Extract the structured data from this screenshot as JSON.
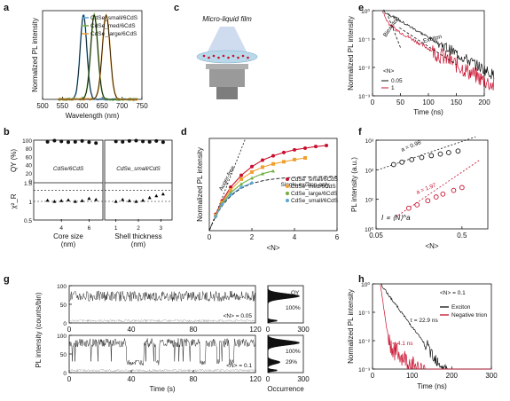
{
  "colors": {
    "red": "#c8102e",
    "blue": "#5aa7d6",
    "green": "#6fae3c",
    "orange": "#f0a030",
    "navy": "#1f3c88",
    "black": "#111111",
    "gray": "#9a9a9a"
  },
  "chart_data": [
    {
      "panel": "a",
      "type": "line",
      "xlabel": "Wavelength (nm)",
      "ylabel": "Normalized PL intensity",
      "xlim": [
        500,
        750
      ],
      "xticks": [
        "500",
        "550",
        "600",
        "650",
        "700",
        "750"
      ],
      "series": [
        {
          "name": "CdSe_small/6CdS",
          "peak": 603,
          "fwhm": 26
        },
        {
          "name": "CdSe_med/6CdS",
          "peak": 630,
          "fwhm": 28
        },
        {
          "name": "CdSe_large/6CdS",
          "peak": 660,
          "fwhm": 30
        }
      ]
    },
    {
      "panel": "b",
      "type": "scatter",
      "ylabel_top": "QY (%)",
      "ylabel_bottom": "χ²_R",
      "ylim_top": [
        0,
        100
      ],
      "yticks_top": [
        "0",
        "20",
        "40",
        "60",
        "80",
        "100"
      ],
      "ylim_bottom": [
        0.5,
        1.5
      ],
      "yticks_bottom": [
        "0.5",
        "1",
        "1.5"
      ],
      "left": {
        "label": "CdSe/6CdS",
        "xlabel": "Core size (nm)",
        "xticks": [
          "4",
          "6"
        ],
        "x": [
          3,
          3.5,
          4,
          4.5,
          5,
          5.5,
          6,
          6.5
        ],
        "qy": [
          96,
          99,
          97,
          95,
          96,
          98,
          95,
          93
        ],
        "chi2": [
          1.03,
          1.0,
          1.02,
          1.04,
          1.0,
          1.02,
          1.08,
          1.05
        ]
      },
      "right": {
        "label": "CdSe_small/CdS",
        "xlabel": "Shell thickness (nm)",
        "xticks": [
          "1",
          "2",
          "3"
        ],
        "x": [
          1,
          1.3,
          1.6,
          1.9,
          2.2,
          2.5,
          2.8,
          3.1
        ],
        "qy": [
          97,
          96,
          98,
          99,
          97,
          96,
          98,
          95
        ],
        "chi2": [
          1.0,
          1.05,
          1.02,
          1.0,
          1.03,
          1.1,
          1.15,
          1.2
        ]
      }
    },
    {
      "panel": "c",
      "type": "diagram",
      "title": "Micro-liquid film"
    },
    {
      "panel": "d",
      "type": "line",
      "xlabel": "<N>",
      "ylabel": "Normalized PL intensity",
      "xlim": [
        0,
        6
      ],
      "xticks": [
        "0",
        "2",
        "4",
        "6"
      ],
      "annotations": [
        "Auger-free",
        "Single-exciton-only"
      ],
      "series": [
        {
          "name": "CdSe_small/6CdS",
          "color": "red",
          "marker": "circle",
          "x": [
            0.3,
            0.6,
            1.0,
            1.5,
            2.0,
            2.5,
            3.0,
            3.5,
            4.0,
            4.5,
            5.0,
            5.5
          ],
          "y": [
            0.3,
            0.55,
            0.8,
            1.02,
            1.18,
            1.3,
            1.38,
            1.44,
            1.49,
            1.52,
            1.55,
            1.57
          ]
        },
        {
          "name": "CdSe_med/6CdS",
          "color": "orange",
          "marker": "square",
          "x": [
            0.3,
            0.6,
            1.0,
            1.5,
            2.0,
            2.5,
            3.0,
            3.5,
            4.0,
            4.5
          ],
          "y": [
            0.28,
            0.52,
            0.75,
            0.95,
            1.08,
            1.17,
            1.23,
            1.27,
            1.31,
            1.34
          ]
        },
        {
          "name": "CdSe_large/6CdS",
          "color": "green",
          "marker": "triangle",
          "x": [
            0.3,
            0.6,
            1.0,
            1.5,
            2.0,
            2.5,
            3.0
          ],
          "y": [
            0.27,
            0.5,
            0.7,
            0.86,
            0.97,
            1.05,
            1.1
          ]
        },
        {
          "name": "CdSe_small/6CdS (thin)",
          "color": "blue",
          "marker": "diamond",
          "x": [
            0.3,
            0.6,
            1.0,
            1.5,
            2.0
          ],
          "y": [
            0.26,
            0.48,
            0.66,
            0.8,
            0.88
          ]
        }
      ]
    },
    {
      "panel": "e",
      "type": "line",
      "xlabel": "Time (ns)",
      "ylabel": "Normalized PL intensity",
      "xlim": [
        0,
        200
      ],
      "xticks": [
        "0",
        "50",
        "100",
        "150",
        "200"
      ],
      "ylim": [
        0.001,
        1
      ],
      "yscale": "log",
      "legend_title": "<N>",
      "series": [
        {
          "name": "0.05",
          "color": "black"
        },
        {
          "name": "1",
          "color": "red"
        }
      ],
      "annotations": [
        "Biexciton",
        "Exciton"
      ]
    },
    {
      "panel": "f",
      "type": "scatter",
      "xlabel": "<N>",
      "ylabel": "PL intensity (a.u.)",
      "xscale": "log",
      "yscale": "log",
      "xlim": [
        0.05,
        1
      ],
      "xticks": [
        "0.05",
        "0.5"
      ],
      "ylim": [
        1,
        1000
      ],
      "yticks": [
        "10⁰",
        "10¹",
        "10²",
        "10³"
      ],
      "formula": "I ∝ ⟨N⟩^a",
      "series": [
        {
          "name": "a = 0.98",
          "color": "black",
          "x": [
            0.08,
            0.1,
            0.13,
            0.17,
            0.22,
            0.28,
            0.35,
            0.45
          ],
          "y": [
            150,
            180,
            220,
            260,
            300,
            340,
            380,
            430
          ]
        },
        {
          "name": "a = 1.97",
          "color": "red",
          "x": [
            0.12,
            0.15,
            0.2,
            0.25,
            0.3,
            0.4,
            0.5
          ],
          "y": [
            5,
            6.5,
            9,
            12,
            15,
            20,
            25
          ]
        }
      ]
    },
    {
      "panel": "g",
      "type": "line",
      "xlabel": "Time (s)",
      "ylabel": "PL intensity (counts/bin)",
      "xlim": [
        0,
        120
      ],
      "xticks": [
        "0",
        "40",
        "80",
        "120"
      ],
      "ylim": [
        0,
        100
      ],
      "yticks": [
        "0",
        "50",
        "100"
      ],
      "traces": [
        {
          "label": "<N> = 0.05",
          "qy_label": "QY",
          "pct": "100%"
        },
        {
          "label": "<N> = 0.1",
          "pct_top": "100%",
          "pct_bottom": "29%"
        }
      ],
      "hist_xlabel": "Occurrence",
      "hist_xticks": [
        "0",
        "300"
      ]
    },
    {
      "panel": "h",
      "type": "line",
      "xlabel": "Time (ns)",
      "ylabel": "Normalized PL intensity",
      "xlim": [
        0,
        300
      ],
      "xticks": [
        "0",
        "100",
        "200",
        "300"
      ],
      "ylim": [
        0.001,
        1
      ],
      "yscale": "log",
      "series": [
        {
          "name": "Exciton",
          "color": "black",
          "tau": "τ = 22.9 ns"
        },
        {
          "name": "Negative trion",
          "color": "red",
          "tau": "τ = 4.1 ns"
        }
      ],
      "annotation": "<N> = 0.1"
    }
  ]
}
